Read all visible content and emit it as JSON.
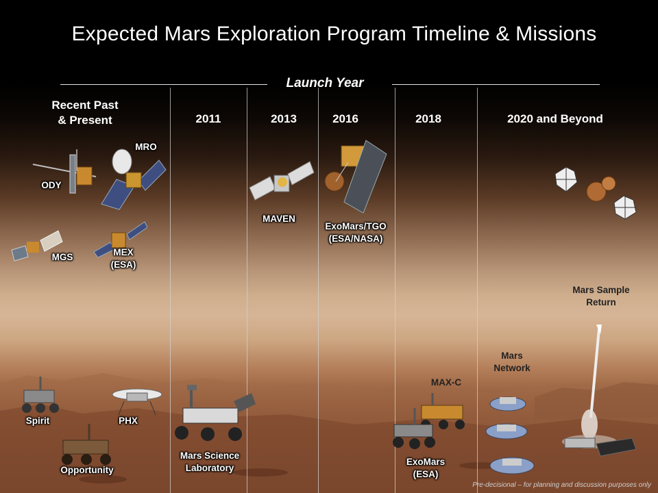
{
  "title": "Expected Mars Exploration Program Timeline & Missions",
  "launch_year_label": "Launch Year",
  "columns": [
    {
      "heading": "Recent Past\n& Present"
    },
    {
      "heading": "2011"
    },
    {
      "heading": "2013"
    },
    {
      "heading": "2016"
    },
    {
      "heading": "2018"
    },
    {
      "heading": "2020 and Beyond"
    }
  ],
  "missions": {
    "mro": "MRO",
    "ody": "ODY",
    "mgs": "MGS",
    "mex": "MEX\n(ESA)",
    "spirit": "Spirit",
    "phx": "PHX",
    "opportunity": "Opportunity",
    "msl": "Mars Science\nLaboratory",
    "maven": "MAVEN",
    "exomars_tgo": "ExoMars/TGO\n(ESA/NASA)",
    "maxc": "MAX-C",
    "exomars_esa": "ExoMars\n(ESA)",
    "mars_network": "Mars\nNetwork",
    "msr": "Mars Sample\nReturn"
  },
  "footer_note": "Pre-decisional – for planning and discussion purposes only",
  "colors": {
    "sky_top": "#000000",
    "horizon": "#d6b596",
    "ground": "#6a3b24",
    "text": "#ffffff"
  }
}
